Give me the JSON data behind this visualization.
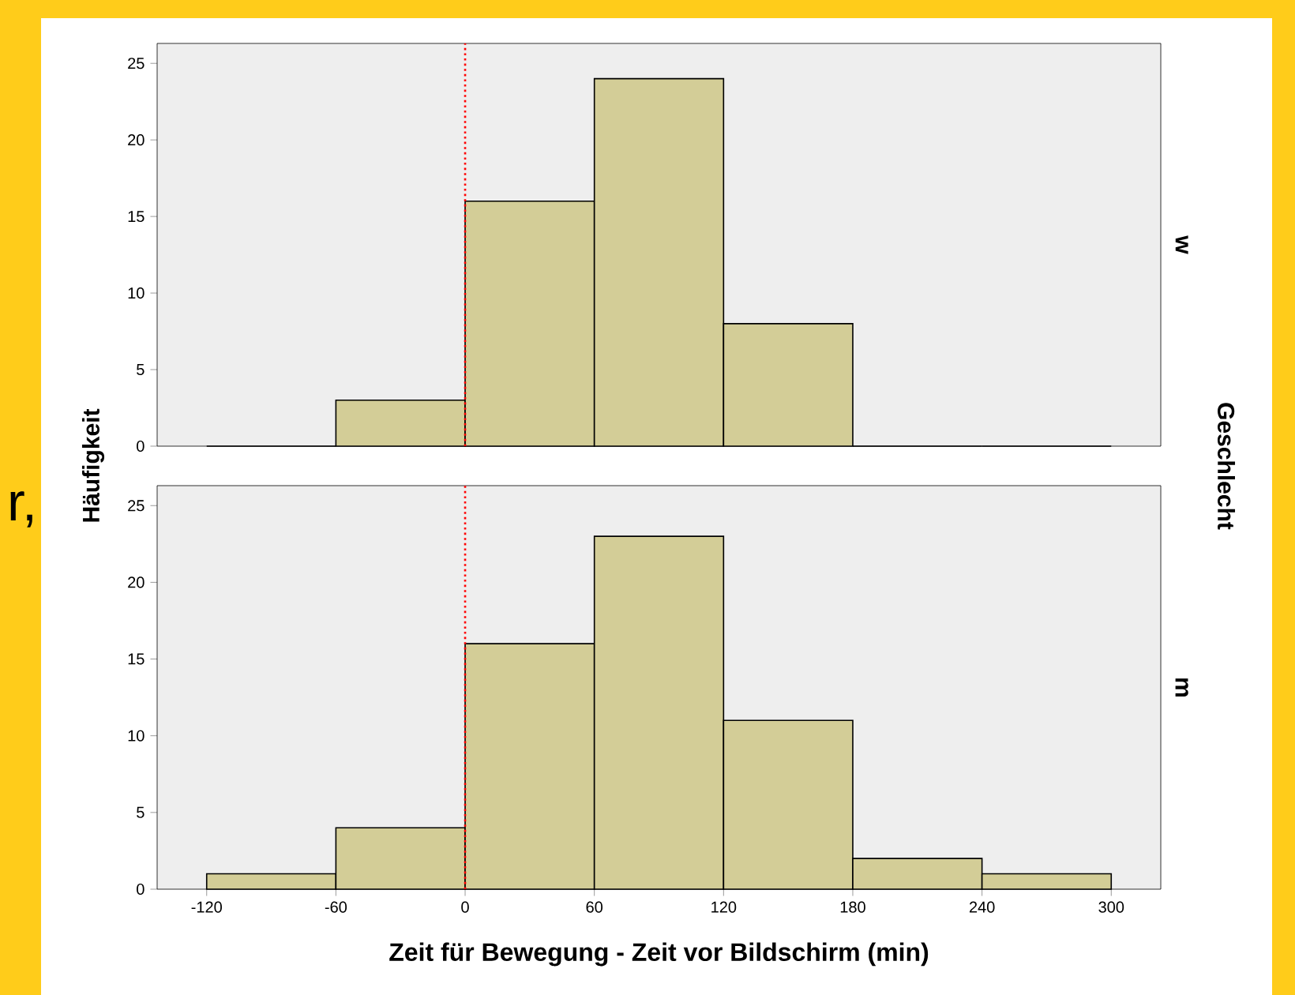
{
  "chart_data": [
    {
      "type": "histogram",
      "y2label": "w",
      "ylabel": "Häufigkeit",
      "bins": [
        -120,
        -60,
        0,
        60,
        120,
        180,
        240,
        300
      ],
      "values": [
        0,
        3,
        16,
        24,
        8,
        0,
        0
      ],
      "color": "#d3cd97",
      "xlim": [
        -143,
        323
      ],
      "ylim": [
        0,
        26.3
      ],
      "xticks": [
        -120,
        -60,
        0,
        60,
        120,
        180,
        240,
        300
      ],
      "yticks": [
        0,
        5,
        10,
        15,
        20,
        25
      ],
      "tick_labels": "y",
      "ref_lines": [
        {
          "axis": "x",
          "value": 0,
          "color": "#ff0000",
          "line_style": "dotted"
        }
      ],
      "annotations": [
        "Geschlecht",
        "r,"
      ]
    },
    {
      "type": "histogram",
      "y2label": "m",
      "xlabel": "Zeit für Bewegung - Zeit vor Bildschirm (min)",
      "bins": [
        -120,
        -60,
        0,
        60,
        120,
        180,
        240,
        300
      ],
      "values": [
        1,
        4,
        16,
        23,
        11,
        2,
        1
      ],
      "color": "#d3cd97",
      "xlim": [
        -143,
        323
      ],
      "ylim": [
        0,
        26.3
      ],
      "xticks": [
        -120,
        -60,
        0,
        60,
        120,
        180,
        240,
        300
      ],
      "yticks": [
        0,
        5,
        10,
        15,
        20,
        25
      ],
      "ref_lines": [
        {
          "axis": "x",
          "value": 0,
          "color": "#ff0000",
          "line_style": "dotted"
        }
      ]
    }
  ]
}
